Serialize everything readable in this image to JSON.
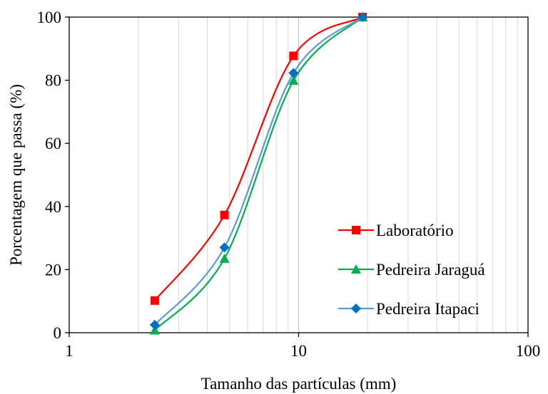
{
  "chart_data": {
    "type": "scatter",
    "title": "",
    "xlabel": "Tamanho das partículas (mm)",
    "ylabel": "Porcentagem que passa (%)",
    "xscale": "log",
    "xlim": [
      1,
      100
    ],
    "ylim": [
      0,
      100
    ],
    "x_ticks": [
      1,
      10,
      100
    ],
    "x_tick_labels": [
      "1",
      "10",
      "100"
    ],
    "y_ticks": [
      0,
      20,
      40,
      60,
      80,
      100
    ],
    "y_tick_labels": [
      "0",
      "20",
      "40",
      "60",
      "80",
      "100"
    ],
    "grid": "vertical log minor and major lines",
    "legend_position": "bottom-right inside plot",
    "smooth_lines": true,
    "series": [
      {
        "name": "Laboratório",
        "color": "#ff0000",
        "marker": "square",
        "x": [
          2.36,
          4.75,
          9.5,
          19
        ],
        "y": [
          10.2,
          37.3,
          87.7,
          100
        ]
      },
      {
        "name": "Pedreira Jaraguá",
        "color": "#00b050",
        "marker": "triangle",
        "x": [
          2.36,
          4.75,
          9.5,
          19
        ],
        "y": [
          0.8,
          23.5,
          79.9,
          100
        ]
      },
      {
        "name": "Pedreira Itapaci",
        "color": "#0070c0",
        "line_color": "#5b9bd5",
        "marker": "diamond",
        "x": [
          2.36,
          4.75,
          9.5,
          19
        ],
        "y": [
          2.5,
          27.0,
          82.3,
          100
        ]
      }
    ]
  }
}
